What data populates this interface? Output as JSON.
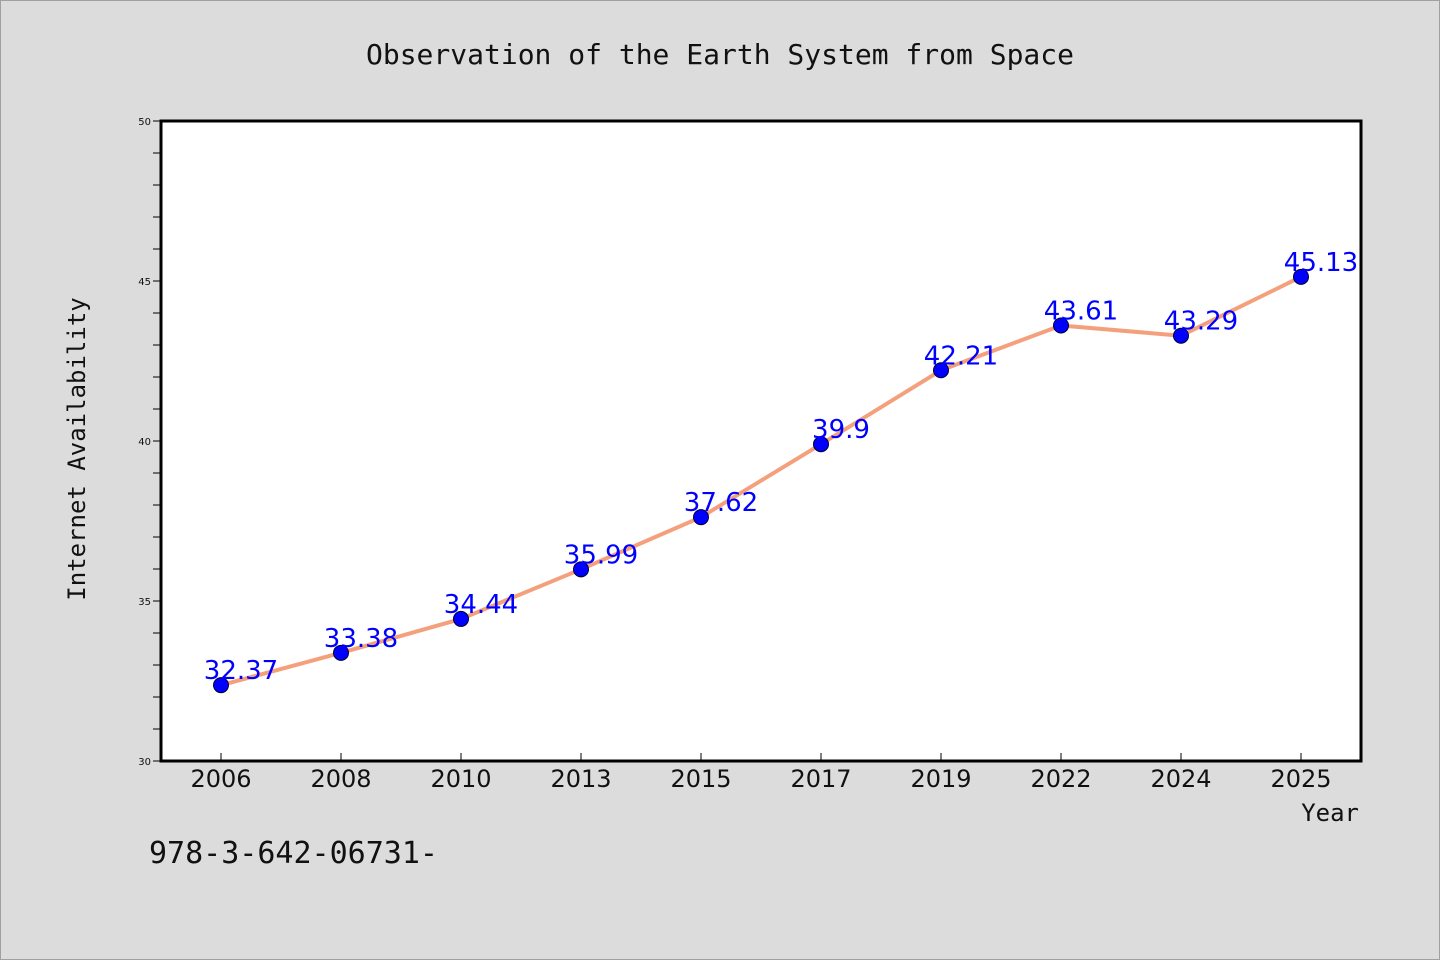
{
  "footer_text": "978-3-642-06731-",
  "colors": {
    "line": "#f4a07c",
    "marker": "#0000ff",
    "label": "#0000ff",
    "plot_bg": "#ffffff",
    "figure_bg": "#dcdcdc"
  },
  "chart_data": {
    "type": "line",
    "title": "Observation of the Earth System from Space",
    "xlabel": "Year",
    "ylabel": "Internet Availability",
    "categories": [
      "2006",
      "2008",
      "2010",
      "2013",
      "2015",
      "2017",
      "2019",
      "2022",
      "2024",
      "2025"
    ],
    "series": [
      {
        "values": [
          32.37,
          33.38,
          34.44,
          35.99,
          37.62,
          39.9,
          42.21,
          43.61,
          43.29,
          45.13
        ],
        "labels": [
          "32.37",
          "33.38",
          "34.44",
          "35.99",
          "37.62",
          "39.9",
          "42.21",
          "43.61",
          "43.29",
          "45.13"
        ]
      }
    ],
    "ylim": [
      30,
      50
    ],
    "yticks": [
      30,
      35,
      40,
      45,
      50
    ],
    "y_minor_step": 1,
    "grid": false,
    "legend": "none"
  }
}
